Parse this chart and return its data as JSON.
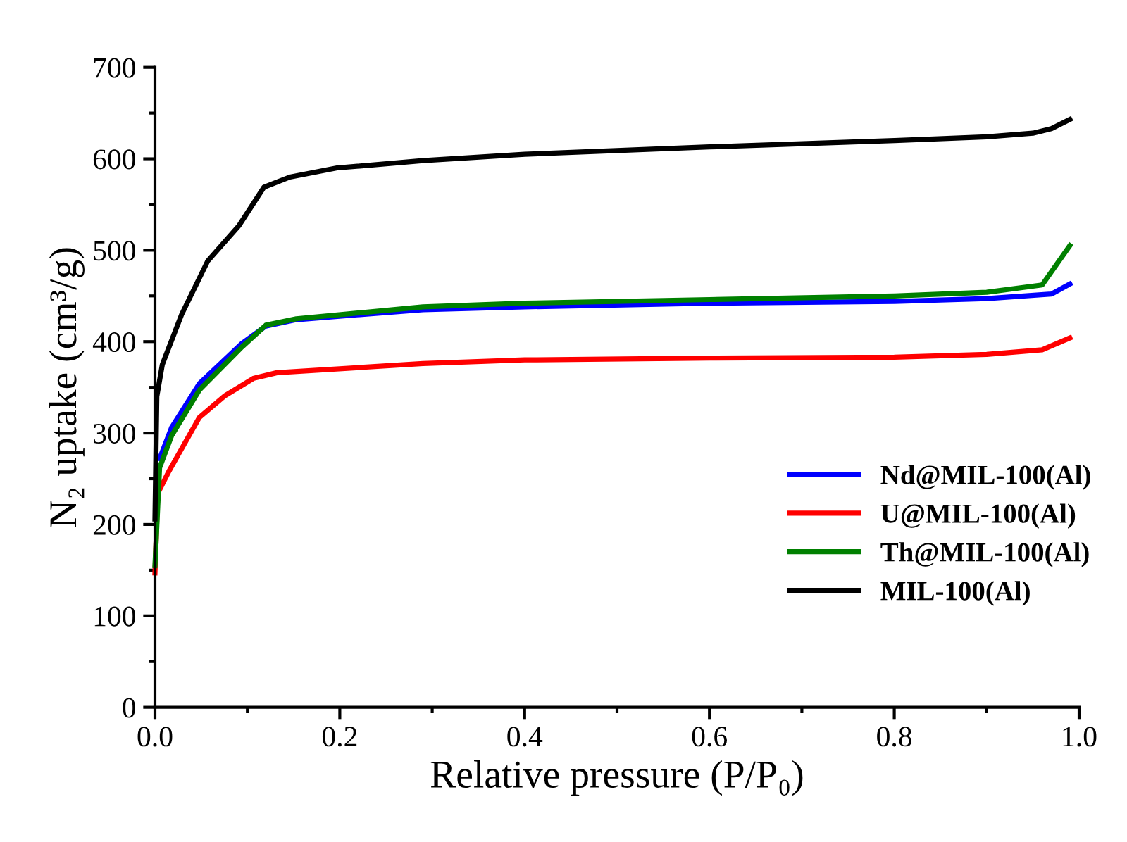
{
  "chart_data": {
    "type": "line",
    "xlabel": "Relative pressure (P/P₀)",
    "ylabel": "N₂ uptake (cm³/g)",
    "xlim": [
      0,
      1.0
    ],
    "ylim": [
      0,
      700
    ],
    "xticks": [
      {
        "value": 0,
        "label": "0.0"
      },
      {
        "value": 0.2,
        "label": "0.2"
      },
      {
        "value": 0.4,
        "label": "0.4"
      },
      {
        "value": 0.6,
        "label": "0.6"
      },
      {
        "value": 0.8,
        "label": "0.8"
      },
      {
        "value": 1.0,
        "label": "1.0"
      }
    ],
    "yticks": [
      0,
      100,
      200,
      300,
      400,
      500,
      600,
      700
    ],
    "grid": false,
    "legend": "bottom right",
    "marker": "none",
    "line_style": "solid",
    "series": [
      {
        "name": "Nd@MIL-100(Al)",
        "color": "#0000ff",
        "x": [
          0.005,
          0.018,
          0.048,
          0.094,
          0.12,
          0.153,
          0.29,
          0.4,
          0.6,
          0.8,
          0.9,
          0.97,
          0.99
        ],
        "values": [
          272,
          306,
          354,
          398,
          417,
          424,
          435,
          438,
          442,
          444,
          447,
          452,
          463
        ]
      },
      {
        "name": "U@MIL-100(Al)",
        "color": "#ff0000",
        "x": [
          0,
          0.003,
          0.015,
          0.048,
          0.076,
          0.107,
          0.132,
          0.29,
          0.4,
          0.6,
          0.8,
          0.9,
          0.96,
          0.99
        ],
        "values": [
          147,
          234,
          258,
          317,
          341,
          360,
          366,
          376,
          380,
          382,
          383,
          386,
          391,
          404
        ]
      },
      {
        "name": "Th@MIL-100(Al)",
        "color": "#008000",
        "x": [
          0,
          0.005,
          0.018,
          0.048,
          0.094,
          0.12,
          0.153,
          0.29,
          0.4,
          0.6,
          0.8,
          0.9,
          0.96,
          0.99
        ],
        "values": [
          155,
          262,
          297,
          347,
          394,
          418,
          425,
          438,
          442,
          446,
          450,
          454,
          462,
          505
        ]
      },
      {
        "name": "MIL-100(Al)",
        "color": "#000000",
        "x": [
          0,
          0.002,
          0.008,
          0.029,
          0.057,
          0.091,
          0.118,
          0.146,
          0.197,
          0.29,
          0.4,
          0.6,
          0.8,
          0.9,
          0.95,
          0.97,
          0.99
        ],
        "values": [
          206,
          340,
          375,
          430,
          488,
          527,
          569,
          580,
          590,
          598,
          605,
          613,
          620,
          624,
          628,
          633,
          643
        ]
      }
    ]
  }
}
